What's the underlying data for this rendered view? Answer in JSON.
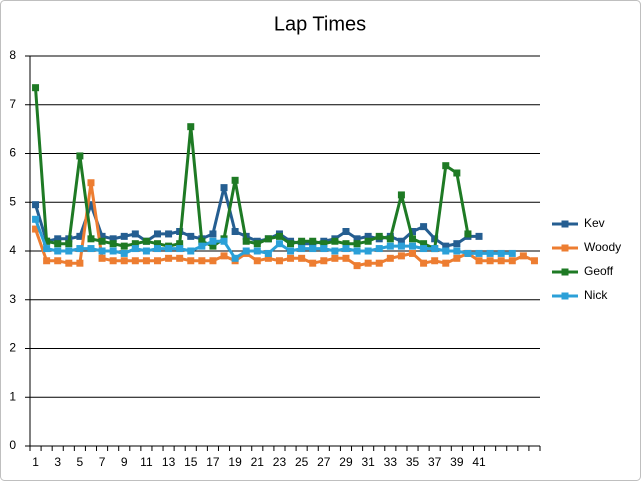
{
  "chart_data": {
    "type": "line",
    "title": "Lap Times",
    "categories": [
      1,
      2,
      3,
      4,
      5,
      6,
      7,
      8,
      9,
      10,
      11,
      12,
      13,
      14,
      15,
      16,
      17,
      18,
      19,
      20,
      21,
      22,
      23,
      24,
      25,
      26,
      27,
      28,
      29,
      30,
      31,
      32,
      33,
      34,
      35,
      36,
      37,
      38,
      39,
      40,
      41,
      null,
      null,
      null,
      null,
      null
    ],
    "tick_label_interval": 2,
    "series": [
      {
        "name": "Kev",
        "color": "#255e91",
        "values": [
          4.95,
          4.2,
          4.25,
          4.25,
          4.3,
          4.95,
          4.3,
          4.25,
          4.3,
          4.35,
          4.2,
          4.35,
          4.35,
          4.4,
          4.3,
          4.25,
          4.35,
          5.3,
          4.4,
          4.3,
          4.2,
          4.25,
          4.35,
          4.2,
          4.15,
          4.15,
          4.2,
          4.25,
          4.4,
          4.25,
          4.3,
          4.25,
          4.3,
          4.2,
          4.4,
          4.5,
          4.25,
          4.1,
          4.15,
          4.3,
          4.3,
          null,
          null,
          null,
          null,
          null
        ]
      },
      {
        "name": "Woody",
        "color": "#ed7d31",
        "values": [
          4.45,
          3.8,
          3.8,
          3.75,
          3.75,
          5.4,
          3.85,
          3.8,
          3.8,
          3.8,
          3.8,
          3.8,
          3.85,
          3.85,
          3.8,
          3.8,
          3.8,
          3.9,
          3.8,
          3.95,
          3.8,
          3.85,
          3.8,
          3.85,
          3.85,
          3.75,
          3.8,
          3.85,
          3.85,
          3.7,
          3.75,
          3.75,
          3.85,
          3.9,
          3.95,
          3.75,
          3.8,
          3.75,
          3.85,
          3.95,
          3.8,
          3.8,
          3.8,
          3.8,
          3.9,
          3.8
        ]
      },
      {
        "name": "Geoff",
        "color": "#1e7a24",
        "values": [
          7.35,
          4.2,
          4.15,
          4.15,
          5.95,
          4.25,
          4.2,
          4.15,
          4.1,
          4.15,
          4.2,
          4.15,
          4.1,
          4.15,
          6.55,
          4.2,
          4.1,
          4.25,
          5.45,
          4.2,
          4.15,
          4.25,
          4.3,
          4.15,
          4.2,
          4.2,
          4.15,
          4.2,
          4.15,
          4.15,
          4.2,
          4.3,
          4.25,
          5.15,
          4.25,
          4.15,
          4.05,
          5.75,
          5.6,
          4.35,
          null,
          null,
          null,
          null,
          null,
          null
        ]
      },
      {
        "name": "Nick",
        "color": "#2ba0d8",
        "values": [
          4.65,
          4.05,
          4.0,
          4.0,
          4.05,
          4.05,
          4.0,
          4.0,
          3.95,
          4.05,
          4.0,
          4.05,
          4.05,
          4.05,
          4.0,
          4.1,
          4.2,
          4.2,
          3.85,
          4.0,
          4.0,
          3.95,
          4.15,
          4.0,
          4.05,
          4.05,
          4.05,
          4.0,
          4.05,
          4.0,
          4.0,
          4.05,
          4.1,
          4.1,
          4.1,
          4.05,
          4.05,
          4.0,
          4.0,
          3.95,
          3.95,
          3.95,
          3.95,
          3.95,
          null,
          null
        ]
      }
    ],
    "ylim": [
      0,
      8
    ],
    "yticks": [
      0,
      1,
      2,
      3,
      4,
      5,
      6,
      7,
      8
    ],
    "grid": true,
    "legend": "right"
  }
}
